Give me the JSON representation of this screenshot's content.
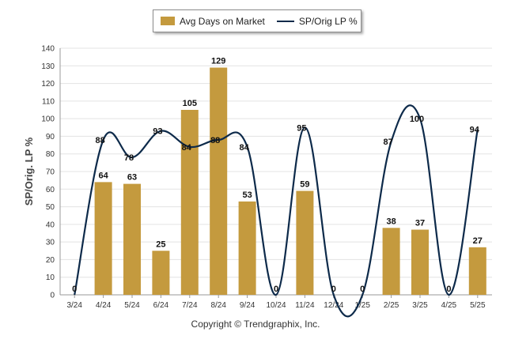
{
  "chart_data": {
    "type": "bar",
    "categories": [
      "3/24",
      "4/24",
      "5/24",
      "6/24",
      "7/24",
      "8/24",
      "9/24",
      "10/24",
      "11/24",
      "12/24",
      "1/25",
      "2/25",
      "3/25",
      "4/25",
      "5/25"
    ],
    "series": [
      {
        "name": "Avg Days on Market",
        "type": "bar",
        "color": "#c49a3e",
        "values": [
          0,
          64,
          63,
          25,
          105,
          129,
          53,
          0,
          59,
          0,
          0,
          38,
          37,
          0,
          27
        ],
        "labels": [
          "0",
          "64",
          "63",
          "25",
          "105",
          "129",
          "53",
          "0",
          "59",
          "0",
          "0",
          "38",
          "37",
          "0",
          "27"
        ]
      },
      {
        "name": "SP/Orig LP %",
        "type": "line",
        "color": "#0d2a4a",
        "values": [
          0,
          88,
          78,
          93,
          84,
          88,
          84,
          0,
          95,
          0,
          0,
          87,
          100,
          0,
          94
        ],
        "labels": [
          "",
          "88",
          "78",
          "93",
          "84",
          "88",
          "84",
          "",
          "95",
          "",
          "",
          "87",
          "100",
          "",
          "94"
        ]
      }
    ],
    "ylabel": "SP/Orig. LP %",
    "ylim": [
      0,
      140
    ],
    "yticks": [
      "0",
      "10",
      "20",
      "30",
      "40",
      "50",
      "60",
      "70",
      "80",
      "90",
      "100",
      "110",
      "120",
      "130",
      "140"
    ],
    "grid": true,
    "legend": "top-center"
  },
  "legend": {
    "bar_label": "Avg Days on Market",
    "line_label": "SP/Orig LP %"
  },
  "footer": {
    "copyright": "Copyright © Trendgraphix, Inc."
  }
}
